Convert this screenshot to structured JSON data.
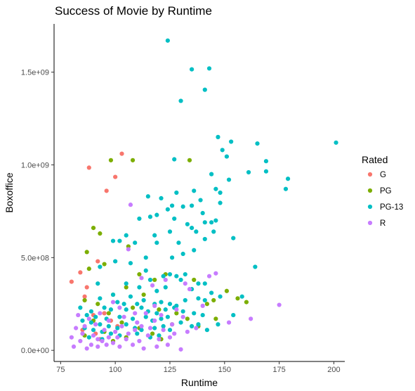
{
  "chart_data": {
    "type": "scatter",
    "title": "Success of Movie by Runtime",
    "xlabel": "Runtime",
    "ylabel": "Boxoffice",
    "xlim": [
      72,
      205
    ],
    "ylim": [
      -60000000,
      1760000000
    ],
    "x_ticks": [
      {
        "value": 75,
        "label": "75"
      },
      {
        "value": 100,
        "label": "100"
      },
      {
        "value": 125,
        "label": "125"
      },
      {
        "value": 150,
        "label": "150"
      },
      {
        "value": 175,
        "label": "175"
      },
      {
        "value": 200,
        "label": "200"
      }
    ],
    "y_ticks": [
      {
        "value": 0,
        "label": "0.0e+00"
      },
      {
        "value": 500000000,
        "label": "5.0e+08"
      },
      {
        "value": 1000000000,
        "label": "1.0e+09"
      },
      {
        "value": 1500000000,
        "label": "1.5e+09"
      }
    ],
    "grid": false,
    "legend": {
      "title": "Rated",
      "position": "right"
    },
    "series": [
      {
        "name": "G",
        "color": "#F8766D",
        "points": [
          [
            103,
            1060000000
          ],
          [
            88,
            985000000
          ],
          [
            100,
            935000000
          ],
          [
            96,
            860000000
          ],
          [
            84,
            420000000
          ],
          [
            80,
            370000000
          ],
          [
            92,
            480000000
          ],
          [
            87,
            340000000
          ],
          [
            86,
            290000000
          ],
          [
            90,
            190000000
          ],
          [
            95,
            200000000
          ],
          [
            98,
            160000000
          ],
          [
            85,
            110000000
          ],
          [
            91,
            90000000
          ],
          [
            101,
            130000000
          ],
          [
            93,
            60000000
          ]
        ]
      },
      {
        "name": "PG",
        "color": "#7CAE00",
        "points": [
          [
            98,
            1025000000
          ],
          [
            108,
            1025000000
          ],
          [
            134,
            1025000000
          ],
          [
            90,
            660000000
          ],
          [
            93,
            630000000
          ],
          [
            87,
            530000000
          ],
          [
            106,
            560000000
          ],
          [
            95,
            465000000
          ],
          [
            88,
            440000000
          ],
          [
            111,
            410000000
          ],
          [
            123,
            410000000
          ],
          [
            118,
            380000000
          ],
          [
            136,
            380000000
          ],
          [
            142,
            250000000
          ],
          [
            145,
            270000000
          ],
          [
            151,
            320000000
          ],
          [
            156,
            280000000
          ],
          [
            160,
            260000000
          ],
          [
            105,
            340000000
          ],
          [
            113,
            300000000
          ],
          [
            99,
            300000000
          ],
          [
            86,
            270000000
          ],
          [
            92,
            250000000
          ],
          [
            108,
            230000000
          ],
          [
            97,
            200000000
          ],
          [
            120,
            220000000
          ],
          [
            128,
            200000000
          ],
          [
            133,
            170000000
          ],
          [
            90,
            160000000
          ],
          [
            103,
            150000000
          ],
          [
            111,
            120000000
          ],
          [
            95,
            100000000
          ],
          [
            86,
            80000000
          ],
          [
            105,
            70000000
          ],
          [
            117,
            90000000
          ],
          [
            126,
            140000000
          ],
          [
            138,
            130000000
          ],
          [
            99,
            50000000
          ],
          [
            121,
            60000000
          ],
          [
            146,
            170000000
          ]
        ]
      },
      {
        "name": "PG-13",
        "color": "#00BFC4",
        "points": [
          [
            124,
            1670000000
          ],
          [
            135,
            1515000000
          ],
          [
            143,
            1520000000
          ],
          [
            141,
            1405000000
          ],
          [
            130,
            1345000000
          ],
          [
            147,
            1150000000
          ],
          [
            153,
            1125000000
          ],
          [
            165,
            1115000000
          ],
          [
            201,
            1120000000
          ],
          [
            149,
            1080000000
          ],
          [
            151,
            1045000000
          ],
          [
            127,
            1030000000
          ],
          [
            169,
            1020000000
          ],
          [
            161,
            960000000
          ],
          [
            169,
            965000000
          ],
          [
            179,
            925000000
          ],
          [
            152,
            920000000
          ],
          [
            146,
            870000000
          ],
          [
            144,
            950000000
          ],
          [
            136,
            860000000
          ],
          [
            178,
            870000000
          ],
          [
            128,
            850000000
          ],
          [
            121,
            820000000
          ],
          [
            115,
            830000000
          ],
          [
            148,
            850000000
          ],
          [
            139,
            810000000
          ],
          [
            126,
            780000000
          ],
          [
            135,
            780000000
          ],
          [
            131,
            775000000
          ],
          [
            124,
            760000000
          ],
          [
            148,
            795000000
          ],
          [
            140,
            740000000
          ],
          [
            119,
            730000000
          ],
          [
            116,
            720000000
          ],
          [
            111,
            710000000
          ],
          [
            127,
            710000000
          ],
          [
            141,
            690000000
          ],
          [
            144,
            690000000
          ],
          [
            133,
            680000000
          ],
          [
            135,
            660000000
          ],
          [
            137,
            640000000
          ],
          [
            146,
            700000000
          ],
          [
            145,
            640000000
          ],
          [
            125,
            640000000
          ],
          [
            118,
            620000000
          ],
          [
            105,
            620000000
          ],
          [
            99,
            590000000
          ],
          [
            102,
            590000000
          ],
          [
            109,
            580000000
          ],
          [
            119,
            580000000
          ],
          [
            129,
            580000000
          ],
          [
            141,
            600000000
          ],
          [
            154,
            605000000
          ],
          [
            131,
            520000000
          ],
          [
            126,
            500000000
          ],
          [
            136,
            540000000
          ],
          [
            107,
            470000000
          ],
          [
            114,
            430000000
          ],
          [
            114,
            500000000
          ],
          [
            100,
            480000000
          ],
          [
            93,
            450000000
          ],
          [
            122,
            400000000
          ],
          [
            125,
            410000000
          ],
          [
            128,
            400000000
          ],
          [
            130,
            380000000
          ],
          [
            132,
            410000000
          ],
          [
            138,
            360000000
          ],
          [
            141,
            360000000
          ],
          [
            164,
            450000000
          ],
          [
            116,
            380000000
          ],
          [
            105,
            360000000
          ],
          [
            111,
            340000000
          ],
          [
            119,
            320000000
          ],
          [
            123,
            340000000
          ],
          [
            135,
            330000000
          ],
          [
            144,
            310000000
          ],
          [
            148,
            290000000
          ],
          [
            158,
            290000000
          ],
          [
            107,
            290000000
          ],
          [
            99,
            300000000
          ],
          [
            92,
            360000000
          ],
          [
            93,
            280000000
          ],
          [
            101,
            260000000
          ],
          [
            104,
            250000000
          ],
          [
            110,
            250000000
          ],
          [
            113,
            270000000
          ],
          [
            118,
            250000000
          ],
          [
            121,
            260000000
          ],
          [
            125,
            250000000
          ],
          [
            128,
            240000000
          ],
          [
            132,
            270000000
          ],
          [
            138,
            280000000
          ],
          [
            141,
            270000000
          ],
          [
            95,
            230000000
          ],
          [
            98,
            220000000
          ],
          [
            105,
            220000000
          ],
          [
            112,
            230000000
          ],
          [
            115,
            210000000
          ],
          [
            119,
            200000000
          ],
          [
            123,
            220000000
          ],
          [
            127,
            230000000
          ],
          [
            131,
            210000000
          ],
          [
            136,
            200000000
          ],
          [
            140,
            190000000
          ],
          [
            89,
            210000000
          ],
          [
            84,
            230000000
          ],
          [
            87,
            190000000
          ],
          [
            91,
            180000000
          ],
          [
            96,
            170000000
          ],
          [
            102,
            180000000
          ],
          [
            108,
            170000000
          ],
          [
            114,
            180000000
          ],
          [
            117,
            160000000
          ],
          [
            121,
            170000000
          ],
          [
            124,
            180000000
          ],
          [
            130,
            150000000
          ],
          [
            135,
            130000000
          ],
          [
            138,
            140000000
          ],
          [
            142,
            110000000
          ],
          [
            147,
            140000000
          ],
          [
            154,
            190000000
          ],
          [
            85,
            160000000
          ],
          [
            89,
            150000000
          ],
          [
            93,
            140000000
          ],
          [
            97,
            130000000
          ],
          [
            101,
            120000000
          ],
          [
            105,
            140000000
          ],
          [
            109,
            120000000
          ],
          [
            112,
            110000000
          ],
          [
            118,
            120000000
          ],
          [
            122,
            130000000
          ],
          [
            125,
            110000000
          ],
          [
            86,
            120000000
          ],
          [
            90,
            110000000
          ],
          [
            94,
            100000000
          ],
          [
            98,
            90000000
          ],
          [
            102,
            80000000
          ],
          [
            110,
            90000000
          ],
          [
            116,
            70000000
          ],
          [
            120,
            80000000
          ],
          [
            94,
            60000000
          ],
          [
            88,
            70000000
          ]
        ]
      },
      {
        "name": "R",
        "color": "#C77CFF",
        "points": [
          [
            107,
            785000000
          ],
          [
            106,
            545000000
          ],
          [
            146,
            415000000
          ],
          [
            123,
            380000000
          ],
          [
            132,
            360000000
          ],
          [
            143,
            400000000
          ],
          [
            112,
            390000000
          ],
          [
            117,
            350000000
          ],
          [
            134,
            330000000
          ],
          [
            175,
            245000000
          ],
          [
            162,
            170000000
          ],
          [
            152,
            150000000
          ],
          [
            137,
            120000000
          ],
          [
            126,
            140000000
          ],
          [
            118,
            160000000
          ],
          [
            110,
            150000000
          ],
          [
            104,
            180000000
          ],
          [
            97,
            160000000
          ],
          [
            91,
            140000000
          ],
          [
            86,
            130000000
          ],
          [
            82,
            120000000
          ],
          [
            80,
            70000000
          ],
          [
            84,
            50000000
          ],
          [
            89,
            30000000
          ],
          [
            94,
            50000000
          ],
          [
            99,
            40000000
          ],
          [
            102,
            20000000
          ],
          [
            108,
            30000000
          ],
          [
            113,
            10000000
          ],
          [
            119,
            20000000
          ],
          [
            124,
            30000000
          ],
          [
            130,
            5000000
          ],
          [
            81,
            20000000
          ],
          [
            87,
            10000000
          ],
          [
            92,
            20000000
          ],
          [
            96,
            30000000
          ],
          [
            101,
            70000000
          ],
          [
            105,
            60000000
          ],
          [
            111,
            50000000
          ],
          [
            115,
            80000000
          ],
          [
            120,
            60000000
          ],
          [
            127,
            90000000
          ],
          [
            85,
            90000000
          ],
          [
            90,
            80000000
          ],
          [
            95,
            110000000
          ],
          [
            100,
            100000000
          ],
          [
            106,
            90000000
          ],
          [
            112,
            130000000
          ],
          [
            116,
            120000000
          ],
          [
            122,
            110000000
          ],
          [
            131,
            180000000
          ],
          [
            140,
            240000000
          ],
          [
            118,
            240000000
          ],
          [
            128,
            220000000
          ],
          [
            99,
            260000000
          ],
          [
            93,
            200000000
          ],
          [
            83,
            190000000
          ],
          [
            88,
            170000000
          ],
          [
            114,
            200000000
          ],
          [
            121,
            190000000
          ],
          [
            103,
            130000000
          ],
          [
            109,
            110000000
          ],
          [
            97,
            70000000
          ],
          [
            92,
            60000000
          ],
          [
            125,
            70000000
          ],
          [
            133,
            100000000
          ],
          [
            109,
            200000000
          ],
          [
            102,
            230000000
          ]
        ]
      }
    ]
  }
}
